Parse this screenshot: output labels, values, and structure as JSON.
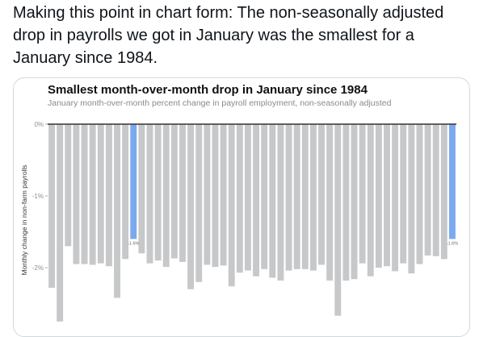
{
  "tweet": {
    "text": "Making this point in chart form: The non-seasonally adjusted drop in payrolls we got in January was the smallest for a January since 1984."
  },
  "colors": {
    "bar": "#c6c8ca",
    "highlight": "#7aa9ee",
    "zero_line": "#333333"
  },
  "chart_data": {
    "type": "bar",
    "title": "Smallest month-over-month drop in January since 1984",
    "subtitle": "January month-over-month percent change in payroll employment, non-seasonally adjusted",
    "ylabel": "Monthly change in non-farm payrolls",
    "yticks": [
      "0%",
      "-1%",
      "-2%"
    ],
    "ylim": [
      -2.8,
      0
    ],
    "highlight_indices": [
      10,
      49
    ],
    "data_labels": [
      {
        "index": 10,
        "text": "-1.6%"
      },
      {
        "index": 49,
        "text": "-1.6%"
      }
    ],
    "values": [
      -2.28,
      -2.75,
      -1.7,
      -1.95,
      -1.95,
      -1.96,
      -1.94,
      -1.98,
      -2.42,
      -1.88,
      -1.6,
      -1.8,
      -1.94,
      -1.9,
      -1.99,
      -1.87,
      -1.92,
      -2.3,
      -2.2,
      -1.96,
      -1.99,
      -1.97,
      -2.26,
      -2.07,
      -2.04,
      -2.12,
      -2.02,
      -2.14,
      -2.18,
      -2.04,
      -2.02,
      -2.02,
      -2.04,
      -1.96,
      -2.18,
      -2.67,
      -2.18,
      -2.16,
      -1.94,
      -2.12,
      -2.0,
      -1.98,
      -2.05,
      -1.94,
      -2.08,
      -1.95,
      -1.83,
      -1.84,
      -1.88,
      -1.6
    ]
  }
}
